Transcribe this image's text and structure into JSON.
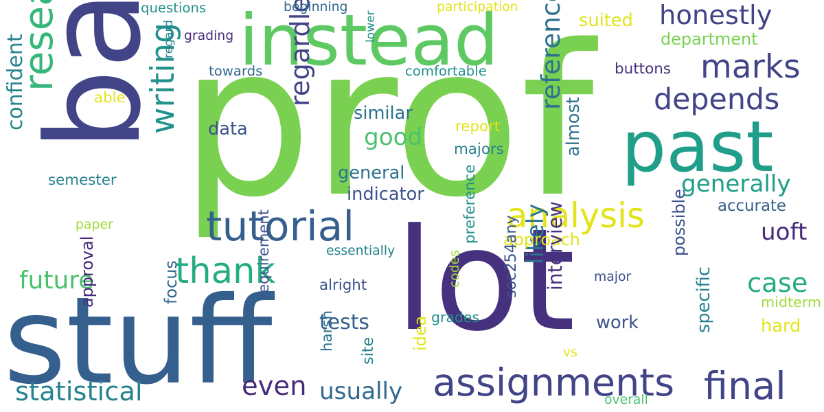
{
  "palette": {
    "dark_purple": "#46317e",
    "violet": "#472a7a",
    "indigo": "#414487",
    "blue": "#3b528b",
    "steel": "#355f8d",
    "slate": "#31688e",
    "teal_blue": "#2c728e",
    "teal": "#26828e",
    "sea": "#21918c",
    "jade": "#1f9e89",
    "green_teal": "#25ab82",
    "emerald": "#35b779",
    "mint": "#4ac16d",
    "green": "#5ec962",
    "lime_green": "#7ad151",
    "yellow_green": "#a0da39",
    "yellow": "#e2e418"
  },
  "words": [
    {
      "text": "prof",
      "color": "lime_green"
    },
    {
      "text": "lot",
      "color": "dark_purple"
    },
    {
      "text": "stuff",
      "color": "steel"
    },
    {
      "text": "bad",
      "color": "indigo"
    },
    {
      "text": "instead",
      "color": "green"
    },
    {
      "text": "past",
      "color": "jade"
    },
    {
      "text": "tutorial",
      "color": "steel"
    },
    {
      "text": "assignments",
      "color": "indigo"
    },
    {
      "text": "analysis",
      "color": "yellow"
    },
    {
      "text": "research",
      "color": "emerald"
    },
    {
      "text": "marks",
      "color": "indigo"
    },
    {
      "text": "honestly",
      "color": "indigo"
    },
    {
      "text": "thank",
      "color": "green_teal"
    },
    {
      "text": "final",
      "color": "indigo"
    },
    {
      "text": "depends",
      "color": "indigo"
    },
    {
      "text": "statistical",
      "color": "teal"
    },
    {
      "text": "writing",
      "color": "sea"
    },
    {
      "text": "even",
      "color": "violet"
    },
    {
      "text": "case",
      "color": "green_teal"
    },
    {
      "text": "generally",
      "color": "jade"
    },
    {
      "text": "regardless",
      "color": "indigo"
    },
    {
      "text": "reference",
      "color": "teal_blue"
    },
    {
      "text": "usually",
      "color": "slate"
    },
    {
      "text": "confident",
      "color": "teal"
    },
    {
      "text": "good",
      "color": "mint"
    },
    {
      "text": "future",
      "color": "mint"
    },
    {
      "text": "uoft",
      "color": "violet"
    },
    {
      "text": "likely",
      "color": "teal_blue"
    },
    {
      "text": "tests",
      "color": "steel"
    },
    {
      "text": "indicator",
      "color": "blue"
    },
    {
      "text": "general",
      "color": "teal_blue"
    },
    {
      "text": "similar",
      "color": "teal_blue"
    },
    {
      "text": "data",
      "color": "blue"
    },
    {
      "text": "accurate",
      "color": "steel"
    },
    {
      "text": "approach",
      "color": "yellow"
    },
    {
      "text": "buttons",
      "color": "dark_purple"
    },
    {
      "text": "work",
      "color": "blue"
    },
    {
      "text": "grades",
      "color": "sea"
    },
    {
      "text": "possible",
      "color": "blue"
    },
    {
      "text": "specific",
      "color": "teal"
    },
    {
      "text": "midterm",
      "color": "yellow_green"
    },
    {
      "text": "hard",
      "color": "yellow"
    },
    {
      "text": "interview",
      "color": "dark_purple"
    },
    {
      "text": "approval",
      "color": "violet"
    },
    {
      "text": "focus",
      "color": "slate"
    },
    {
      "text": "almost",
      "color": "teal_blue"
    },
    {
      "text": "suited",
      "color": "yellow"
    },
    {
      "text": "department",
      "color": "lime_green"
    },
    {
      "text": "codes",
      "color": "yellow_green"
    },
    {
      "text": "site",
      "color": "teal"
    },
    {
      "text": "semester",
      "color": "teal"
    },
    {
      "text": "able",
      "color": "yellow"
    },
    {
      "text": "questions",
      "color": "sea"
    },
    {
      "text": "grading",
      "color": "violet"
    },
    {
      "text": "towards",
      "color": "slate"
    },
    {
      "text": "beginning",
      "color": "slate"
    },
    {
      "text": "participation",
      "color": "yellow"
    },
    {
      "text": "comfortable",
      "color": "sea"
    },
    {
      "text": "report",
      "color": "yellow"
    },
    {
      "text": "majors",
      "color": "teal"
    },
    {
      "text": "regard",
      "color": "teal"
    },
    {
      "text": "lower",
      "color": "sea"
    },
    {
      "text": "essentially",
      "color": "teal"
    },
    {
      "text": "alright",
      "color": "blue"
    },
    {
      "text": "paper",
      "color": "yellow_green"
    },
    {
      "text": "major",
      "color": "blue"
    },
    {
      "text": "vs",
      "color": "yellow"
    },
    {
      "text": "idea",
      "color": "yellow"
    },
    {
      "text": "preference",
      "color": "sea"
    },
    {
      "text": "soc254any",
      "color": "blue"
    },
    {
      "text": "requirement",
      "color": "blue"
    },
    {
      "text": "harsh",
      "color": "teal_blue"
    },
    {
      "text": "overall",
      "color": "mint"
    }
  ]
}
